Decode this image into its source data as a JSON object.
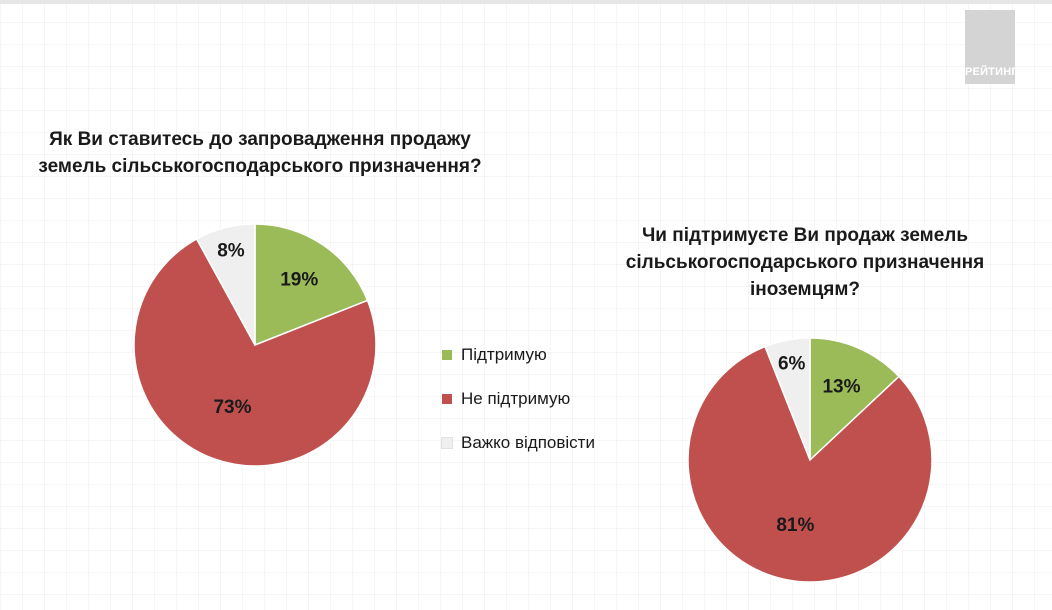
{
  "logo": {
    "text": "РЕЙТИНГ"
  },
  "colors": {
    "support": "#9bbb59",
    "oppose": "#c0504d",
    "hard_to_say": "#f0efef",
    "title_text": "#1a1a1a",
    "logo_bg": "#d4d4d4"
  },
  "legend": {
    "items": [
      {
        "label": "Підтримую",
        "color": "#9bbb59"
      },
      {
        "label": "Не підтримую",
        "color": "#c0504d"
      },
      {
        "label": "Важко відповісти",
        "color": "#f0efef"
      }
    ]
  },
  "chart_data": [
    {
      "type": "pie",
      "title": "Як Ви ставитесь до запровадження продажу земель сільськогосподарського призначення?",
      "title_lines": [
        "Як Ви ставитесь до запровадження продажу",
        "земель сільськогосподарського призначення?"
      ],
      "categories": [
        "Підтримую",
        "Не підтримую",
        "Важко відповісти"
      ],
      "values": [
        19,
        73,
        8
      ],
      "data_labels": [
        "19%",
        "73%",
        "8%"
      ],
      "colors": [
        "#9bbb59",
        "#c0504d",
        "#f0efef"
      ],
      "legend": "right"
    },
    {
      "type": "pie",
      "title": "Чи підтримуєте Ви продаж земель сільськогосподарського призначення іноземцям?",
      "title_lines": [
        "Чи підтримуєте Ви продаж земель",
        "сільськогосподарського призначення",
        "іноземцям?"
      ],
      "categories": [
        "Підтримую",
        "Не підтримую",
        "Важко відповісти"
      ],
      "values": [
        13,
        81,
        6
      ],
      "data_labels": [
        "13%",
        "81%",
        "6%"
      ],
      "colors": [
        "#9bbb59",
        "#c0504d",
        "#f0efef"
      ],
      "legend": "left"
    }
  ]
}
